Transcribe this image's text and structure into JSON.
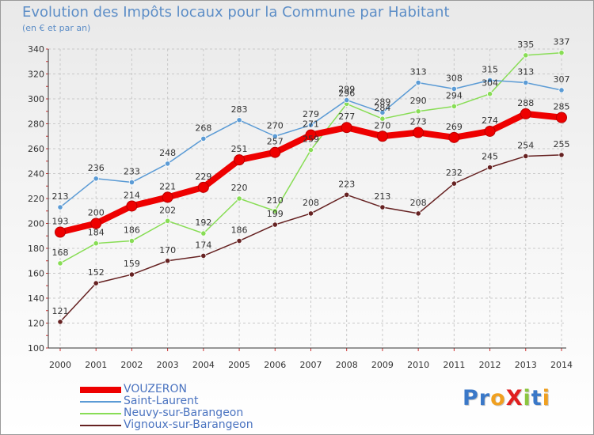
{
  "title": "Evolution des Impôts locaux pour la Commune par Habitant",
  "subtitle": "(en € et par an)",
  "chart_data": {
    "type": "line",
    "title": "Evolution des Impôts locaux pour la Commune par Habitant",
    "subtitle": "(en € et par an)",
    "xlabel": "",
    "ylabel": "",
    "categories": [
      "2000",
      "2001",
      "2002",
      "2003",
      "2004",
      "2005",
      "2006",
      "2007",
      "2008",
      "2009",
      "2010",
      "2011",
      "2012",
      "2013",
      "2014"
    ],
    "ylim": [
      100,
      340
    ],
    "yticks": [
      100,
      120,
      140,
      160,
      180,
      200,
      220,
      240,
      260,
      280,
      300,
      320,
      340
    ],
    "grid": true,
    "legend_position": "bottom-left",
    "series": [
      {
        "name": "VOUZERON",
        "color": "#ee0000",
        "values": [
          193,
          200,
          214,
          221,
          229,
          251,
          257,
          271,
          277,
          270,
          273,
          269,
          274,
          288,
          285
        ]
      },
      {
        "name": "Saint-Laurent",
        "color": "#5b9bd5",
        "values": [
          213,
          236,
          233,
          248,
          268,
          283,
          270,
          279,
          299,
          289,
          313,
          308,
          315,
          313,
          307
        ]
      },
      {
        "name": "Neuvy-sur-Barangeon",
        "color": "#88dd55",
        "values": [
          168,
          184,
          186,
          202,
          192,
          220,
          210,
          259,
          296,
          284,
          290,
          294,
          304,
          335,
          337
        ]
      },
      {
        "name": "Vignoux-sur-Barangeon",
        "color": "#662222",
        "values": [
          121,
          152,
          159,
          170,
          174,
          186,
          199,
          208,
          223,
          213,
          208,
          232,
          245,
          254,
          255
        ]
      }
    ]
  },
  "legend": [
    {
      "label": "VOUZERON",
      "color": "#ee0000"
    },
    {
      "label": "Saint-Laurent",
      "color": "#5b9bd5"
    },
    {
      "label": "Neuvy-sur-Barangeon",
      "color": "#88dd55"
    },
    {
      "label": "Vignoux-sur-Barangeon",
      "color": "#662222"
    }
  ],
  "logo": {
    "text": "ProXiti"
  }
}
